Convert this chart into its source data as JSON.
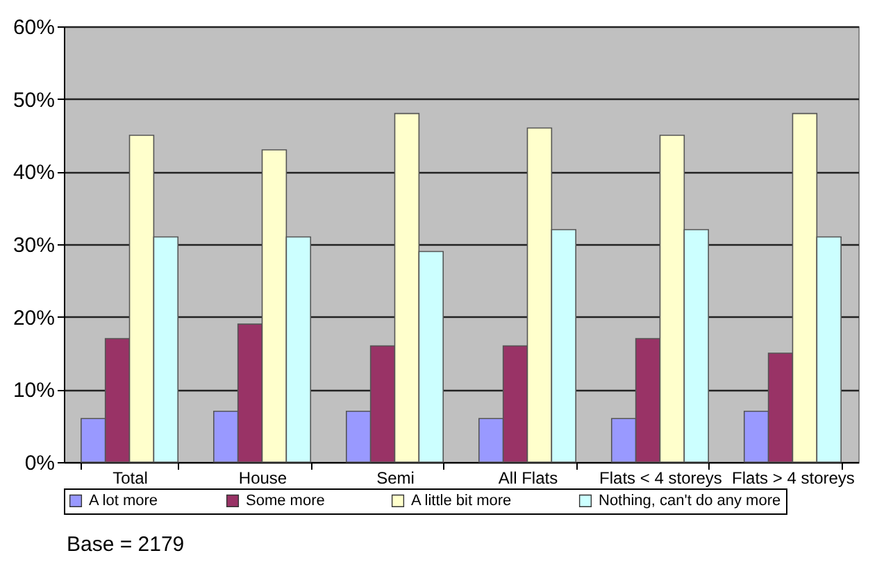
{
  "chart_data": {
    "type": "bar",
    "categories": [
      "Total",
      "House",
      "Semi",
      "All Flats",
      "Flats < 4 storeys",
      "Flats > 4 storeys"
    ],
    "series": [
      {
        "name": "A lot more",
        "color": "#9999ff",
        "values": [
          6,
          7,
          7,
          6,
          6,
          7
        ]
      },
      {
        "name": "Some more",
        "color": "#993366",
        "values": [
          17,
          19,
          16,
          16,
          17,
          15
        ]
      },
      {
        "name": "A little bit more",
        "color": "#ffffcc",
        "values": [
          45,
          43,
          48,
          46,
          45,
          48
        ]
      },
      {
        "name": "Nothing, can't do any more",
        "color": "#ccffff",
        "values": [
          31,
          31,
          29,
          32,
          32,
          31
        ]
      }
    ],
    "ylim": [
      0,
      60
    ],
    "yticks": [
      {
        "value": 0,
        "label": "0%"
      },
      {
        "value": 10,
        "label": "10%"
      },
      {
        "value": 20,
        "label": "20%"
      },
      {
        "value": 30,
        "label": "30%"
      },
      {
        "value": 40,
        "label": "40%"
      },
      {
        "value": 50,
        "label": "50%"
      },
      {
        "value": 60,
        "label": "60%"
      }
    ],
    "grid": "y",
    "legend": "bottom",
    "annotations": [
      "Base = 2179"
    ]
  }
}
